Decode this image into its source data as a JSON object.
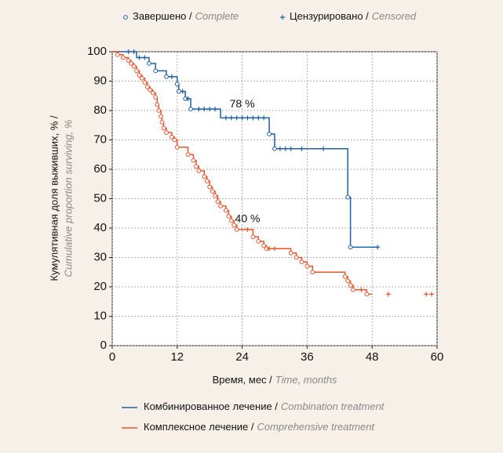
{
  "chart_data": {
    "type": "step",
    "marker_legend": [
      {
        "name": "Завершено /",
        "name_en": "Complete",
        "marker": "circle"
      },
      {
        "name": "Цензурировано /",
        "name_en": "Censored",
        "marker": "plus"
      }
    ],
    "xlabel": "Время, мес /",
    "xlabel_en": "Time, months",
    "ylabel": "Кумулятивная доля выживших, % /",
    "ylabel_en": "Cumulative proportion surviving, %",
    "xlim": [
      0,
      60
    ],
    "xticks": [
      0,
      12,
      24,
      36,
      48,
      60
    ],
    "ylim": [
      0,
      100
    ],
    "yticks": [
      0,
      10,
      20,
      30,
      40,
      50,
      60,
      70,
      80,
      90,
      100
    ],
    "grid": true,
    "annotations": [
      {
        "text": "78 %",
        "x": 24,
        "y": 82
      },
      {
        "text": "40 %",
        "x": 25,
        "y": 43
      }
    ],
    "series": [
      {
        "name": "Комбинированное лечение /",
        "name_en": "Combination treatment",
        "color": "#1f5fa8",
        "x": [
          0,
          4.5,
          6.8,
          8,
          10,
          12,
          12.3,
          13.5,
          14.5,
          20,
          29,
          30,
          43.5,
          44,
          49
        ],
        "values": [
          100,
          98,
          96,
          93.5,
          91.5,
          89,
          86.5,
          84,
          80.5,
          77.5,
          72,
          67,
          50.5,
          33.5,
          33.5
        ],
        "complete_x": [
          6.8,
          8,
          10,
          12,
          12.3,
          13.5,
          14.5,
          29,
          30,
          43.5,
          44
        ],
        "complete_values": [
          96,
          93.5,
          91.5,
          89,
          86.5,
          84,
          80.5,
          72,
          67,
          50.5,
          33.5
        ],
        "censored_x": [
          3,
          4,
          5,
          6,
          11,
          13,
          14,
          16,
          17,
          18,
          19,
          21,
          22,
          23,
          24,
          25,
          26,
          27,
          28,
          31,
          32,
          33,
          35,
          39,
          49
        ],
        "censored_values": [
          100,
          100,
          98,
          98,
          91.5,
          86.5,
          84,
          80.5,
          80.5,
          80.5,
          80.5,
          77.5,
          77.5,
          77.5,
          77.5,
          77.5,
          77.5,
          77.5,
          77.5,
          67,
          67,
          67,
          67,
          67,
          33.5
        ]
      },
      {
        "name": "Комплексное лечение /",
        "name_en": "Comprehensive treatment",
        "color": "#e8532a",
        "x": [
          0,
          1,
          2,
          3,
          3.5,
          4,
          4.5,
          5,
          5.5,
          6,
          6.5,
          7,
          7.5,
          8,
          8.3,
          8.6,
          9,
          9.2,
          9.5,
          10,
          11,
          11.5,
          12,
          14,
          15,
          15.5,
          16,
          17,
          17.5,
          18,
          18.5,
          19,
          19.5,
          20,
          21,
          21.5,
          22,
          22.5,
          23,
          26,
          27,
          28,
          28.5,
          33,
          34,
          35,
          36,
          37,
          43,
          43.5,
          44,
          44.5,
          47,
          48
        ],
        "values": [
          100,
          99,
          98,
          97,
          96,
          95,
          93.5,
          92,
          91,
          89.5,
          88,
          87,
          86,
          84.5,
          82,
          80,
          78,
          76,
          74,
          72.5,
          71,
          70,
          67.5,
          65,
          63,
          61,
          59.5,
          57.5,
          56,
          54,
          52.5,
          51,
          49,
          47.5,
          46,
          44,
          42.5,
          41,
          39.5,
          37,
          35.5,
          34,
          33,
          31.5,
          30,
          28.5,
          27,
          25,
          23.5,
          22,
          20.5,
          19,
          17.5,
          17.5
        ],
        "complete_x": [
          1,
          2,
          3,
          3.5,
          4,
          4.5,
          5,
          5.5,
          6,
          6.5,
          7,
          7.5,
          8,
          8.3,
          8.6,
          9,
          9.2,
          9.5,
          10,
          11,
          11.5,
          12,
          14,
          15,
          15.5,
          16,
          17,
          17.5,
          18,
          18.5,
          19,
          19.5,
          20,
          21,
          21.5,
          22,
          22.5,
          23,
          26,
          27,
          28,
          28.5,
          33,
          34,
          35,
          36,
          37,
          43,
          43.5,
          44,
          44.5,
          47
        ],
        "complete_values": [
          99,
          98,
          97,
          96,
          95,
          93.5,
          92,
          91,
          89.5,
          88,
          87,
          86,
          84.5,
          82,
          80,
          78,
          76,
          74,
          72.5,
          71,
          70,
          67.5,
          65,
          63,
          61,
          59.5,
          57.5,
          56,
          54,
          52.5,
          51,
          49,
          47.5,
          46,
          44,
          42.5,
          41,
          39.5,
          37,
          35.5,
          34,
          33,
          31.5,
          30,
          28.5,
          27,
          25,
          23.5,
          22,
          20.5,
          19,
          17.5
        ],
        "censored_x": [
          25,
          29,
          30,
          46,
          51,
          58,
          59
        ],
        "censored_values": [
          39.5,
          33,
          33,
          19,
          17.5,
          17.5,
          17.5
        ]
      }
    ]
  }
}
